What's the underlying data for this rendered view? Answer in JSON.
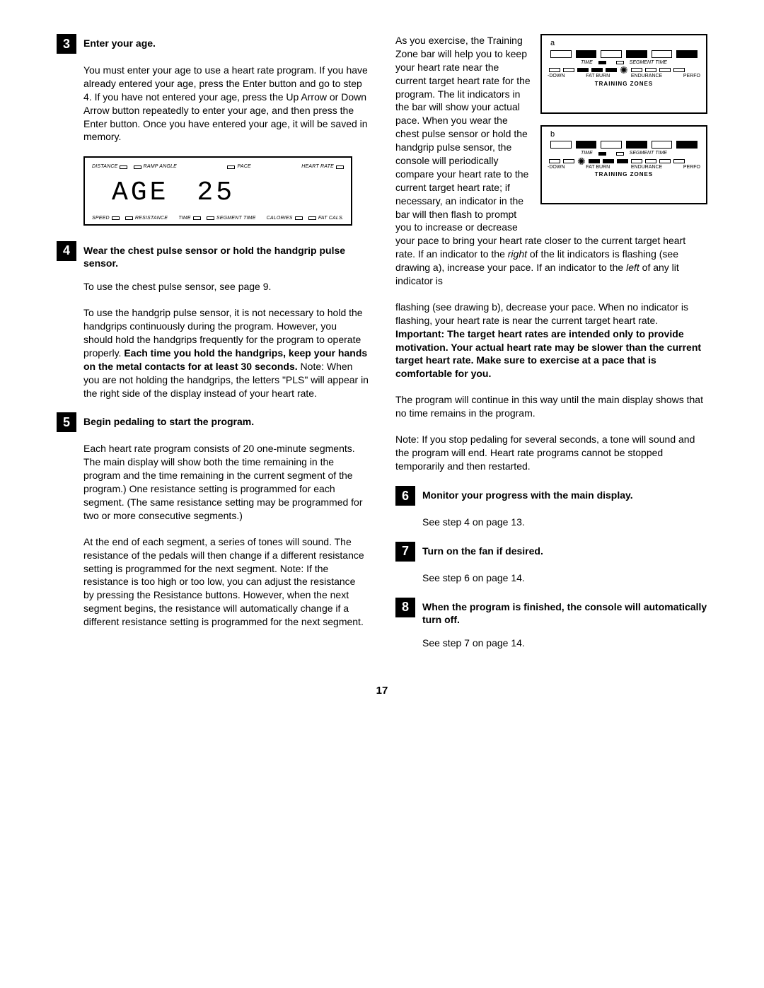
{
  "page_number": "17",
  "left": {
    "s3": {
      "num": "3",
      "title": "Enter your age.",
      "p": "You must enter your age to use a heart rate program. If you have already entered your age, press the Enter button and go to step 4. If you have not entered your age, press the Up Arrow or Down Arrow button repeatedly to enter your age, and then press the Enter button. Once you have entered your age, it will be saved in memory."
    },
    "console": {
      "top": {
        "distance": "DISTANCE",
        "ramp": "RAMP ANGLE",
        "pace": "PACE",
        "hr": "HEART RATE"
      },
      "digits": {
        "word": "AGE",
        "num": "25"
      },
      "bot": {
        "speed": "SPEED",
        "resist": "RESISTANCE",
        "time": "TIME",
        "seg": "SEGMENT TIME",
        "cal": "CALORIES",
        "fat": "FAT CALS."
      }
    },
    "s4": {
      "num": "4",
      "title": "Wear the chest pulse sensor or hold the handgrip pulse sensor.",
      "p1": "To use the chest pulse sensor, see page 9.",
      "p2a": "To use the handgrip pulse sensor, it is not necessary to hold the handgrips continuously during the program. However, you should hold the handgrips frequently for the program to operate properly. ",
      "p2b": "Each time you hold the handgrips, keep your hands on the metal contacts for at least 30 seconds.",
      "p2c": " Note: When you are not holding the handgrips, the letters \"PLS\" will appear in the right side of the display instead of your heart rate."
    },
    "s5": {
      "num": "5",
      "title": "Begin pedaling to start the program.",
      "p1": "Each heart rate program consists of 20 one-minute segments. The main display will show both the time remaining in the program and the time remaining in the current segment of the program.) One resistance setting is programmed for each segment. (The same resistance setting may be programmed for two or more consecutive segments.)",
      "p2": "At the end of each segment, a series of tones will sound. The resistance of the pedals will then change if a different resistance setting is programmed for the next segment. Note: If the resistance is too high or too low, you can adjust the resistance by pressing the Resistance buttons. However, when the next segment begins, the resistance will automatically change if a different resistance setting is programmed for the next segment."
    }
  },
  "right": {
    "intro1": "As you exercise, the Training Zone bar will help you to keep your heart rate near the current target heart rate for the program. The lit indicators in the bar will show your actual pace. When you wear the chest pulse sensor or hold the handgrip pulse sensor, the console will periodically compare your heart rate to the current target heart rate; if necessary, an indicator in the bar will then flash to prompt you to increase or decrease your pace to bring your heart rate closer to the current target heart rate. If an indicator to the ",
    "intro1i": "right",
    "intro1b": " of the lit indicators is flashing (see drawing a), increase your pace. If an indicator to the ",
    "intro1i2": "left",
    "intro1c": " of any lit indicator is",
    "intro2a": "flashing (see drawing b), decrease your pace. When no indicator is flashing, your heart rate is near the current target heart rate. ",
    "intro2b": "Important: The target heart rates are intended only to provide motivation. Your actual heart rate may be slower than the current target heart rate. Make sure to exercise at a pace that is comfortable for you.",
    "p3": "The program will continue in this way until the main display shows that no time remains in the program.",
    "p4": "Note: If you stop pedaling for several seconds, a tone will sound and the program will end. Heart rate programs cannot be stopped temporarily and then restarted.",
    "s6": {
      "num": "6",
      "title": "Monitor your progress with the main display.",
      "p": "See step 4 on page 13."
    },
    "s7": {
      "num": "7",
      "title": "Turn on the fan if desired.",
      "p": "See step 6 on page 14."
    },
    "s8": {
      "num": "8",
      "title": "When the program is finished, the console will automatically turn off.",
      "p": "See step 7 on page 14."
    },
    "tz": {
      "a": "a",
      "b": "b",
      "time": "TIME",
      "seg": "SEGMENT TIME",
      "zones": {
        "cd": "-DOWN",
        "fb": "FAT BURN",
        "en": "ENDURANCE",
        "pf": "PERFO"
      },
      "title": "TRAINING ZONES"
    }
  }
}
